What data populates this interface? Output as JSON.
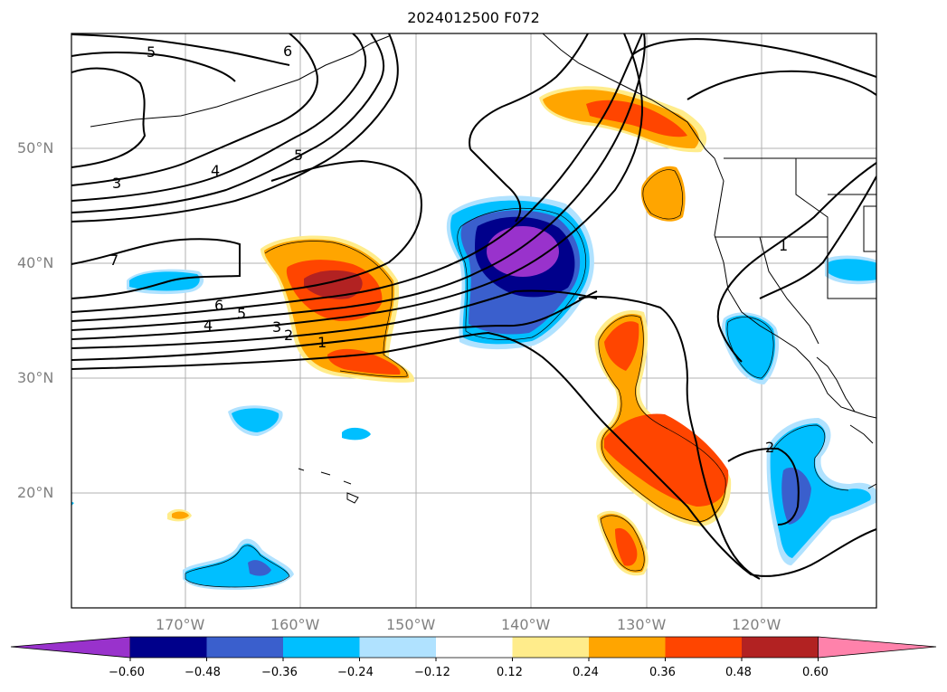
{
  "title": "2024012500 F072",
  "map": {
    "lat_labels": [
      "50°N",
      "40°N",
      "30°N",
      "20°N"
    ],
    "lon_labels": [
      "170°W",
      "160°W",
      "150°W",
      "140°W",
      "130°W",
      "120°W"
    ],
    "lat_values": [
      50,
      40,
      30,
      20
    ],
    "lon_values": [
      -170,
      -160,
      -150,
      -140,
      -130,
      -120
    ],
    "extent": {
      "lon_min": -180,
      "lon_max": -110,
      "lat_min": 10,
      "lat_max": 60
    },
    "contour_labels": [
      "5",
      "6",
      "3",
      "4",
      "5",
      "7",
      "6",
      "5",
      "4",
      "3",
      "2",
      "1",
      "1",
      "2"
    ]
  },
  "colorbar": {
    "ticks": [
      "−0.60",
      "−0.48",
      "−0.36",
      "−0.24",
      "−0.12",
      "0.12",
      "0.24",
      "0.36",
      "0.48",
      "0.60"
    ],
    "colors": [
      "#9932cc",
      "#00008b",
      "#3a5fcd",
      "#00bfff",
      "#b0e2ff",
      "#ffffff",
      "#ffec8b",
      "#ffa500",
      "#ff4500",
      "#b22222",
      "#ff82ab"
    ]
  }
}
